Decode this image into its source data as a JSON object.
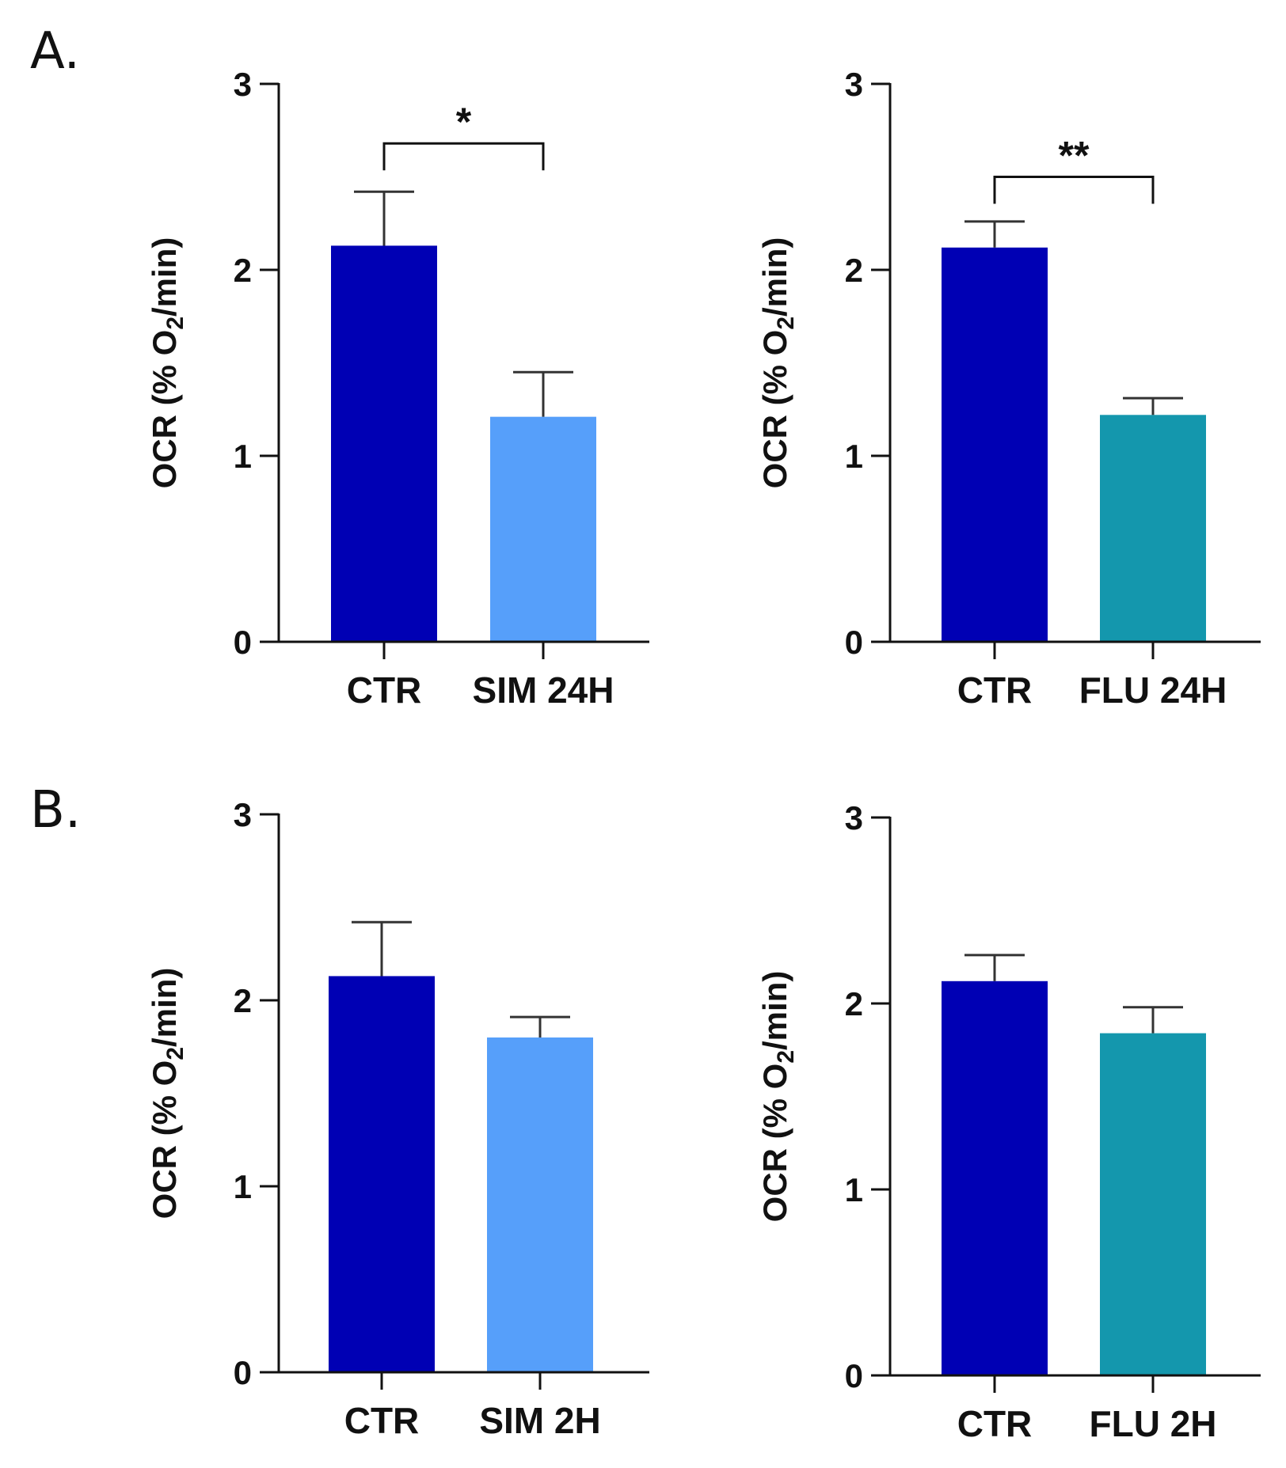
{
  "panel_labels": {
    "a": "A.",
    "b": "B."
  },
  "colors": {
    "ctr": "#0000b4",
    "sim": "#569ffa",
    "flu": "#1497ad"
  },
  "chart_data": [
    {
      "id": "A_SIM",
      "type": "bar",
      "panel": "A.",
      "categories": [
        "CTR",
        "SIM 24H"
      ],
      "values": [
        2.13,
        1.21
      ],
      "errors": [
        0.29,
        0.24
      ],
      "bar_colors": [
        "#0000b4",
        "#569ffa"
      ],
      "ylabel_main": "OCR (% O",
      "ylabel_sub": "2",
      "ylabel_end": "/min)",
      "yticks": [
        "0",
        "1",
        "2",
        "3"
      ],
      "ylim": [
        0,
        3
      ],
      "significance": {
        "label": "*",
        "between": [
          0,
          1
        ],
        "level": 2.68
      }
    },
    {
      "id": "A_FLU",
      "type": "bar",
      "panel": "",
      "categories": [
        "CTR",
        "FLU 24H"
      ],
      "values": [
        2.12,
        1.22
      ],
      "errors": [
        0.14,
        0.09
      ],
      "bar_colors": [
        "#0000b4",
        "#1497ad"
      ],
      "ylabel_main": "OCR (% O",
      "ylabel_sub": "2",
      "ylabel_end": "/min)",
      "yticks": [
        "0",
        "1",
        "2",
        "3"
      ],
      "ylim": [
        0,
        3
      ],
      "significance": {
        "label": "**",
        "between": [
          0,
          1
        ],
        "level": 2.5
      }
    },
    {
      "id": "B_SIM",
      "type": "bar",
      "panel": "B.",
      "categories": [
        "CTR",
        "SIM 2H"
      ],
      "values": [
        2.13,
        1.8
      ],
      "errors": [
        0.29,
        0.11
      ],
      "bar_colors": [
        "#0000b4",
        "#569ffa"
      ],
      "ylabel_main": "OCR (% O",
      "ylabel_sub": "2",
      "ylabel_end": "/min)",
      "yticks": [
        "0",
        "1",
        "2",
        "3"
      ],
      "ylim": [
        0,
        3
      ],
      "significance": null
    },
    {
      "id": "B_FLU",
      "type": "bar",
      "panel": "",
      "categories": [
        "CTR",
        "FLU 2H"
      ],
      "values": [
        2.12,
        1.84
      ],
      "errors": [
        0.14,
        0.14
      ],
      "bar_colors": [
        "#0000b4",
        "#1497ad"
      ],
      "ylabel_main": "OCR (% O",
      "ylabel_sub": "2",
      "ylabel_end": "/min)",
      "yticks": [
        "0",
        "1",
        "2",
        "3"
      ],
      "ylim": [
        0,
        3
      ],
      "significance": null
    }
  ]
}
